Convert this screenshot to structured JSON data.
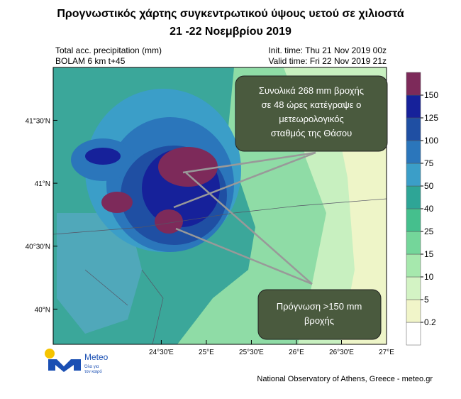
{
  "header": {
    "title_lines": [
      "Προγνωστικός χάρτης συγκεντρωτικού ύψους υετού σε χιλιοστά",
      "21 -22 Νοεμβρίου 2019"
    ]
  },
  "map": {
    "variable": "Total acc. precipitation (mm)",
    "model": "BOLAM 6 km t+45",
    "init_time": "Init. time: Thu 21 Nov 2019 00z",
    "valid_time": "Valid time: Fri 22 Nov 2019 21z",
    "lonlim": [
      23.3,
      27
    ],
    "latlim": [
      39.72,
      41.92
    ],
    "lonticks": [
      {
        "value": 24.5,
        "label": "24°30'E"
      },
      {
        "value": 25,
        "label": "25°E"
      },
      {
        "value": 25.5,
        "label": "25°30'E"
      },
      {
        "value": 26,
        "label": "26°E"
      },
      {
        "value": 26.5,
        "label": "26°30'E"
      },
      {
        "value": 27,
        "label": "27°E"
      }
    ],
    "latticks": [
      {
        "value": 41.5,
        "label": "41°30'N"
      },
      {
        "value": 41,
        "label": "41°N"
      },
      {
        "value": 40.5,
        "label": "40°30'N"
      },
      {
        "value": 40,
        "label": "40°N"
      }
    ]
  },
  "colorbar": {
    "levels": [
      0.2,
      5,
      10,
      15,
      25,
      40,
      50,
      75,
      100,
      125,
      150
    ],
    "colors": [
      "#ffffff",
      "#f1f5c9",
      "#d3f3c4",
      "#a6e8ad",
      "#74d69a",
      "#45bf8d",
      "#2ea596",
      "#3b9ec8",
      "#2b76bb",
      "#1f4fa3",
      "#16219a",
      "#7d2a5a"
    ]
  },
  "annotations": [
    {
      "lines": [
        "Συνολικά 268 mm βροχής",
        "σε 48 ώρες κατέγραψε ο",
        "μετεωρολογικός",
        "σταθμός της Θάσου"
      ]
    },
    {
      "lines": [
        "Πρόγνωση >150 mm",
        "βροχής"
      ]
    }
  ],
  "logo": {
    "name": "Meteo",
    "tagline": [
      "Όλα για",
      "τον καιρό"
    ]
  },
  "footer": "National Observatory of Athens, Greece - meteo.gr"
}
